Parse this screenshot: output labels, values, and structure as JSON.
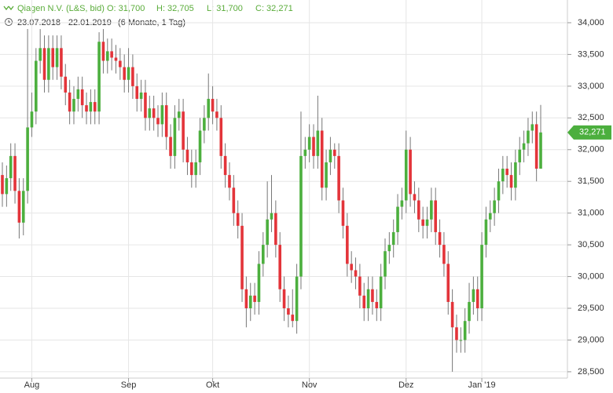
{
  "chart_data": {
    "type": "candlestick",
    "title": "Qiagen N.V. (L&S, bid)",
    "ohlc_labels": [
      "O: 31,700",
      "H: 32,705",
      "L: 31,700",
      "C: 32,271"
    ],
    "date_range": "23.07.2018 - 22.01.2019",
    "period": "(6 Monate, 1 Tag)",
    "last_close_label": "32,271",
    "up_color": "#4caf3e",
    "down_color": "#e3343a",
    "grid": true,
    "ylim": [
      28.4,
      34.358
    ],
    "yticks": [
      {
        "value": 28.5,
        "label": "28,500"
      },
      {
        "value": 29,
        "label": "29,000"
      },
      {
        "value": 29.5,
        "label": "29,500"
      },
      {
        "value": 30,
        "label": "30,000"
      },
      {
        "value": 30.5,
        "label": "30,500"
      },
      {
        "value": 31,
        "label": "31,000"
      },
      {
        "value": 31.5,
        "label": "31,500"
      },
      {
        "value": 32,
        "label": "32,000"
      },
      {
        "value": 32.5,
        "label": "32,500"
      },
      {
        "value": 33,
        "label": "33,000"
      },
      {
        "value": 33.5,
        "label": "33,500"
      },
      {
        "value": 34,
        "label": "34,000"
      }
    ],
    "categories": [
      null,
      null,
      null,
      null,
      null,
      null,
      null,
      "Aug",
      null,
      null,
      null,
      null,
      null,
      null,
      null,
      null,
      null,
      null,
      null,
      null,
      null,
      null,
      null,
      null,
      null,
      null,
      null,
      null,
      null,
      null,
      "Sep",
      null,
      null,
      null,
      null,
      null,
      null,
      null,
      null,
      null,
      null,
      null,
      null,
      null,
      null,
      null,
      null,
      null,
      null,
      null,
      "Okt",
      null,
      null,
      null,
      null,
      null,
      null,
      null,
      null,
      null,
      null,
      null,
      null,
      null,
      null,
      null,
      null,
      null,
      null,
      null,
      null,
      null,
      null,
      "Nov",
      null,
      null,
      null,
      null,
      null,
      null,
      null,
      null,
      null,
      null,
      null,
      null,
      null,
      null,
      null,
      null,
      null,
      null,
      null,
      null,
      null,
      null,
      "Dez",
      null,
      null,
      null,
      null,
      null,
      null,
      null,
      null,
      null,
      null,
      null,
      null,
      null,
      null,
      null,
      null,
      null,
      "Jan '19",
      null,
      null,
      null,
      null,
      null,
      null,
      null,
      null,
      null,
      null,
      null,
      null,
      null,
      null
    ],
    "open": [
      31.6,
      31.3,
      31.55,
      31.9,
      31.35,
      30.85,
      31.35,
      32.35,
      32.6,
      33.4,
      33.6,
      33.1,
      33.6,
      33.3,
      33.6,
      33.15,
      32.9,
      32.6,
      32.8,
      32.95,
      32.7,
      32.6,
      32.75,
      32.6,
      33.7,
      33.4,
      33.55,
      33.45,
      33.4,
      33.3,
      33.1,
      33.3,
      33.0,
      32.8,
      32.9,
      32.5,
      32.65,
      32.5,
      32.4,
      32.7,
      32.2,
      31.9,
      32.5,
      32.6,
      32.0,
      31.8,
      31.6,
      31.8,
      32.3,
      32.5,
      32.8,
      32.6,
      32.5,
      31.9,
      31.6,
      31.4,
      31.0,
      30.8,
      29.8,
      29.5,
      29.7,
      29.6,
      30.2,
      30.5,
      30.9,
      31.0,
      30.5,
      29.8,
      29.5,
      29.4,
      29.3,
      30.0,
      31.9,
      32.0,
      32.2,
      31.9,
      32.3,
      31.4,
      31.8,
      32.0,
      31.9,
      31.2,
      30.8,
      30.2,
      30.1,
      30.0,
      29.7,
      29.5,
      29.8,
      29.6,
      29.5,
      30.0,
      30.4,
      30.5,
      30.7,
      31.1,
      31.2,
      32.0,
      31.3,
      31.2,
      30.9,
      30.8,
      30.9,
      31.2,
      30.7,
      30.5,
      30.2,
      29.6,
      29.2,
      29.0,
      29.0,
      29.3,
      29.6,
      29.8,
      29.5,
      30.5,
      30.9,
      31.0,
      31.2,
      31.5,
      31.7,
      31.6,
      31.4,
      31.8,
      32.0,
      32.1,
      32.3,
      32.4,
      31.7
    ],
    "high": [
      31.8,
      31.75,
      32.1,
      32.1,
      31.55,
      31.55,
      33.9,
      32.9,
      33.6,
      33.9,
      33.8,
      33.8,
      33.8,
      33.8,
      33.8,
      33.35,
      33.1,
      33.0,
      33.15,
      33.15,
      32.9,
      32.95,
      32.95,
      33.85,
      33.9,
      33.75,
      33.75,
      33.65,
      33.6,
      33.5,
      33.6,
      33.5,
      33.2,
      33.1,
      33.1,
      32.85,
      32.85,
      32.7,
      32.9,
      32.9,
      32.4,
      32.7,
      32.8,
      32.8,
      32.2,
      32.0,
      32.0,
      32.5,
      32.7,
      33.2,
      33.0,
      32.8,
      32.7,
      32.1,
      31.8,
      31.6,
      31.2,
      31.0,
      30.0,
      29.9,
      29.9,
      30.4,
      30.7,
      31.5,
      31.6,
      31.2,
      30.7,
      30.0,
      29.7,
      29.8,
      30.2,
      32.6,
      32.2,
      32.4,
      32.4,
      32.85,
      32.5,
      32.0,
      32.2,
      32.1,
      32.1,
      31.4,
      31.0,
      30.4,
      30.3,
      30.2,
      29.9,
      30.0,
      30.0,
      29.8,
      30.2,
      30.6,
      30.7,
      30.9,
      31.3,
      31.4,
      32.3,
      32.2,
      31.5,
      31.4,
      31.1,
      31.1,
      31.4,
      31.4,
      30.9,
      30.7,
      30.4,
      29.8,
      29.4,
      29.2,
      29.5,
      29.9,
      30.0,
      30.0,
      30.7,
      31.1,
      31.2,
      31.4,
      31.7,
      31.9,
      31.9,
      31.8,
      32.0,
      32.2,
      32.3,
      32.5,
      32.6,
      32.6,
      32.705
    ],
    "low": [
      31.1,
      31.1,
      31.35,
      31.15,
      30.6,
      30.65,
      31.15,
      32.2,
      32.4,
      33.2,
      32.9,
      32.9,
      33.1,
      33.1,
      32.95,
      32.7,
      32.4,
      32.4,
      32.6,
      32.5,
      32.4,
      32.4,
      32.4,
      32.4,
      33.2,
      33.2,
      33.25,
      33.2,
      33.1,
      32.9,
      32.9,
      32.8,
      32.6,
      32.6,
      32.3,
      32.3,
      32.3,
      32.2,
      32.2,
      32.0,
      31.7,
      31.7,
      32.3,
      31.8,
      31.6,
      31.4,
      31.4,
      31.6,
      32.1,
      32.3,
      32.4,
      32.3,
      31.7,
      31.4,
      31.2,
      30.8,
      30.6,
      29.6,
      29.2,
      29.3,
      29.4,
      29.4,
      30.0,
      30.3,
      30.7,
      30.3,
      29.6,
      29.3,
      29.2,
      29.2,
      29.1,
      29.8,
      31.7,
      31.8,
      31.7,
      31.7,
      31.2,
      31.2,
      31.6,
      31.7,
      31.0,
      30.6,
      30.0,
      29.9,
      29.8,
      29.5,
      29.3,
      29.3,
      29.4,
      29.3,
      29.3,
      29.8,
      30.2,
      30.3,
      30.5,
      30.9,
      31.0,
      31.1,
      31.0,
      30.7,
      30.6,
      30.6,
      30.7,
      30.5,
      30.3,
      30.0,
      29.4,
      28.5,
      28.8,
      28.8,
      28.8,
      29.1,
      29.4,
      29.3,
      29.3,
      30.3,
      30.7,
      30.8,
      31.0,
      31.3,
      31.4,
      31.2,
      31.2,
      31.6,
      31.8,
      31.9,
      32.1,
      31.5,
      31.7
    ],
    "close": [
      31.3,
      31.55,
      31.9,
      31.35,
      30.85,
      31.35,
      32.35,
      32.6,
      33.4,
      33.6,
      33.1,
      33.6,
      33.3,
      33.6,
      33.15,
      32.9,
      32.6,
      32.8,
      32.95,
      32.7,
      32.6,
      32.75,
      32.6,
      33.7,
      33.4,
      33.55,
      33.45,
      33.4,
      33.3,
      33.1,
      33.3,
      33.0,
      32.8,
      32.9,
      32.5,
      32.65,
      32.5,
      32.4,
      32.7,
      32.2,
      31.9,
      32.5,
      32.6,
      32.0,
      31.8,
      31.6,
      31.8,
      32.3,
      32.5,
      32.8,
      32.6,
      32.5,
      31.9,
      31.6,
      31.4,
      31.0,
      30.8,
      29.8,
      29.5,
      29.7,
      29.6,
      30.2,
      30.5,
      30.9,
      31.0,
      30.5,
      29.8,
      29.5,
      29.4,
      29.3,
      30.0,
      31.9,
      32.0,
      32.2,
      31.9,
      32.3,
      31.4,
      31.8,
      32.0,
      31.9,
      31.2,
      30.8,
      30.2,
      30.1,
      30.0,
      29.7,
      29.5,
      29.8,
      29.6,
      29.5,
      30.0,
      30.4,
      30.5,
      30.7,
      31.1,
      31.2,
      32.0,
      31.3,
      31.2,
      30.9,
      30.8,
      30.9,
      31.2,
      30.7,
      30.5,
      30.2,
      29.6,
      29.2,
      29.0,
      29.0,
      29.3,
      29.6,
      29.8,
      29.5,
      30.5,
      30.9,
      31.0,
      31.2,
      31.5,
      31.7,
      31.6,
      31.4,
      31.8,
      32.0,
      32.1,
      32.3,
      32.4,
      31.7,
      32.271
    ]
  }
}
